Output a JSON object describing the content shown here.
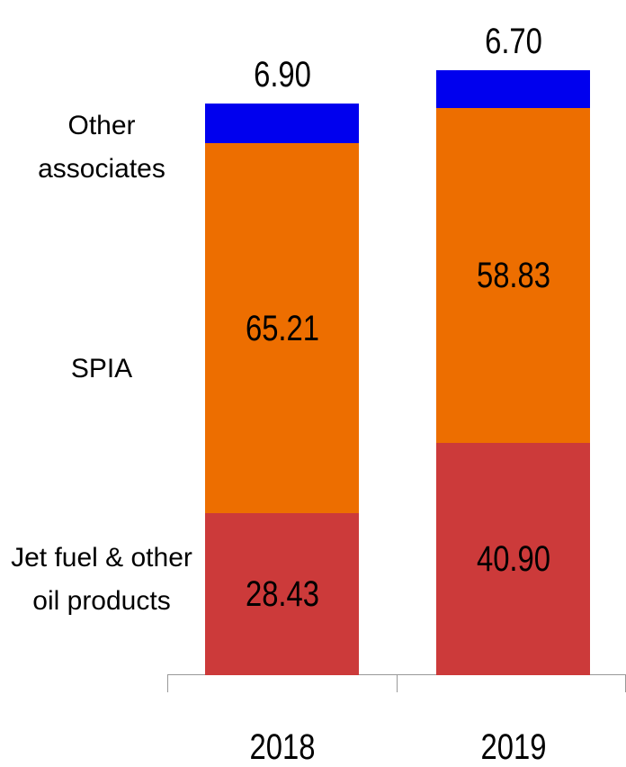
{
  "chart_data": {
    "type": "bar",
    "stacked": true,
    "categories": [
      "2018",
      "2019"
    ],
    "series": [
      {
        "name": "Jet fuel & other oil products",
        "color": "#cc3a3a",
        "values": [
          28.43,
          40.9
        ],
        "value_labels": [
          "28.43",
          "40.90"
        ]
      },
      {
        "name": "SPIA",
        "color": "#ed6e00",
        "values": [
          65.21,
          58.83
        ],
        "value_labels": [
          "65.21",
          "58.83"
        ]
      },
      {
        "name": "Other associates",
        "color": "#0000ee",
        "values": [
          6.9,
          6.7
        ],
        "value_labels": [
          "6.90",
          "6.70"
        ]
      }
    ]
  }
}
